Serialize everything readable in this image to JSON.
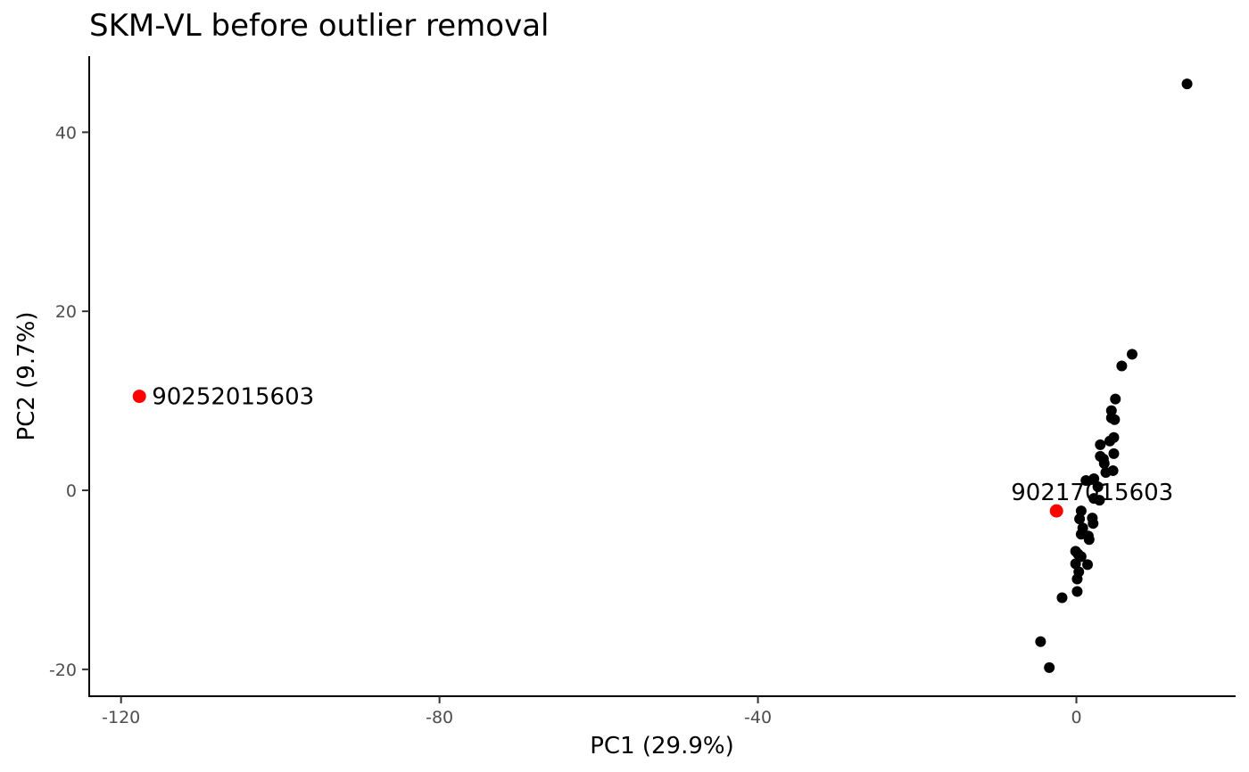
{
  "chart_data": {
    "type": "scatter",
    "title": "SKM-VL before outlier removal",
    "xlabel": "PC1 (29.9%)",
    "ylabel": "PC2 (9.7%)",
    "xlim": [
      -124,
      20
    ],
    "ylim": [
      -23,
      48.5
    ],
    "xticks": [
      -120,
      -80,
      -40,
      0
    ],
    "yticks": [
      -20,
      0,
      20,
      40
    ],
    "grid": false,
    "colors": {
      "normal": "#000000",
      "outlier": "#ff0000"
    },
    "points": [
      {
        "x": 13.9,
        "y": 45.4
      },
      {
        "x": 7.0,
        "y": 15.2
      },
      {
        "x": 5.7,
        "y": 13.9
      },
      {
        "x": 4.9,
        "y": 10.2
      },
      {
        "x": 4.4,
        "y": 8.9
      },
      {
        "x": 4.4,
        "y": 8.1
      },
      {
        "x": 4.8,
        "y": 7.9
      },
      {
        "x": 4.7,
        "y": 5.9
      },
      {
        "x": 4.2,
        "y": 5.5
      },
      {
        "x": 3.0,
        "y": 5.1
      },
      {
        "x": 3.0,
        "y": 3.8
      },
      {
        "x": 3.4,
        "y": 3.5
      },
      {
        "x": 4.7,
        "y": 4.1
      },
      {
        "x": 3.5,
        "y": 3.0
      },
      {
        "x": 4.6,
        "y": 2.2
      },
      {
        "x": 3.7,
        "y": 2.0
      },
      {
        "x": 2.2,
        "y": 1.3
      },
      {
        "x": 1.2,
        "y": 1.1
      },
      {
        "x": 2.7,
        "y": 0.4
      },
      {
        "x": 2.2,
        "y": -0.9
      },
      {
        "x": 2.9,
        "y": -1.1
      },
      {
        "x": 0.6,
        "y": -2.3
      },
      {
        "x": 0.4,
        "y": -3.2
      },
      {
        "x": 2.0,
        "y": -3.1
      },
      {
        "x": 2.1,
        "y": -3.7
      },
      {
        "x": 0.8,
        "y": -4.2
      },
      {
        "x": 0.6,
        "y": -4.9
      },
      {
        "x": 1.5,
        "y": -5.1
      },
      {
        "x": 1.6,
        "y": -5.5
      },
      {
        "x": -0.1,
        "y": -6.8
      },
      {
        "x": 0.2,
        "y": -7.1
      },
      {
        "x": 0.6,
        "y": -7.4
      },
      {
        "x": -0.1,
        "y": -8.2
      },
      {
        "x": 1.4,
        "y": -8.3
      },
      {
        "x": 0.3,
        "y": -9.1
      },
      {
        "x": 0.1,
        "y": -9.9
      },
      {
        "x": 0.1,
        "y": -11.3
      },
      {
        "x": -1.8,
        "y": -12.0
      },
      {
        "x": -4.5,
        "y": -16.9
      },
      {
        "x": -3.4,
        "y": -19.8
      },
      {
        "x": -117.7,
        "y": 10.5,
        "outlier": true,
        "label": "90252015603"
      },
      {
        "x": -2.5,
        "y": -2.3,
        "outlier": true,
        "label": "90217015603"
      }
    ]
  }
}
